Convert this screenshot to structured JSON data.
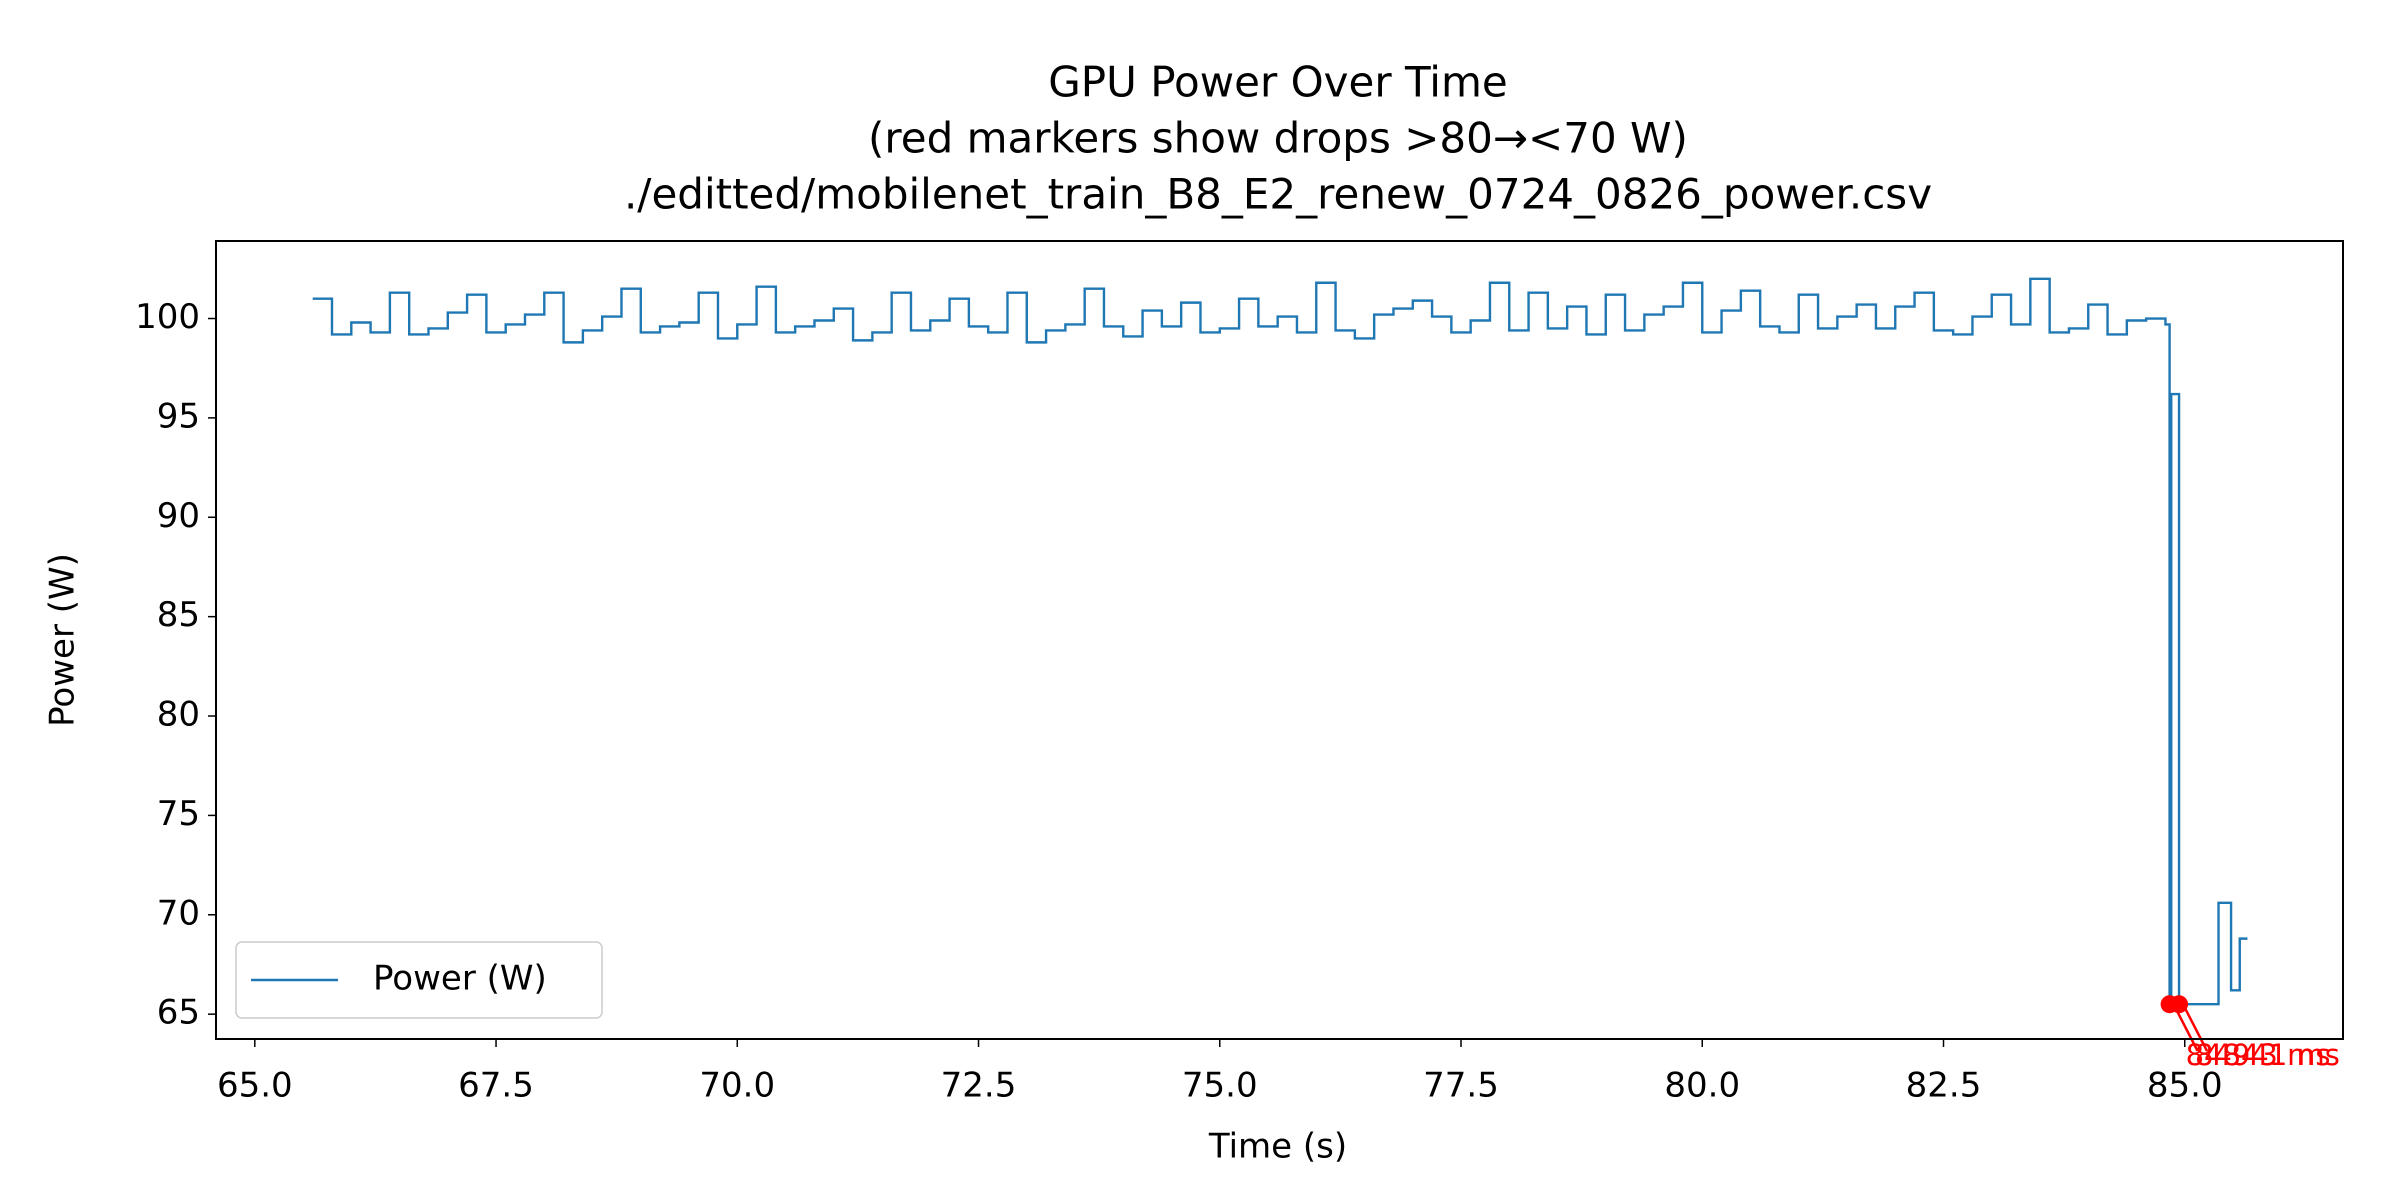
{
  "chart_data": {
    "type": "line",
    "title": [
      "GPU Power Over Time",
      "(red markers show drops >80→<70 W)",
      "./editted/mobilenet_train_B8_E2_renew_0724_0826_power.csv"
    ],
    "xlabel": "Time (s)",
    "ylabel": "Power (W)",
    "step": "post",
    "legend": "lower left",
    "xlim": [
      64.598,
      86.64
    ],
    "ylim": [
      63.75,
      103.9
    ],
    "xticks": [
      {
        "value": 65,
        "label": "65.0"
      },
      {
        "value": 67.5,
        "label": "67.5"
      },
      {
        "value": 70,
        "label": "70.0"
      },
      {
        "value": 72.5,
        "label": "72.5"
      },
      {
        "value": 75,
        "label": "75.0"
      },
      {
        "value": 77.5,
        "label": "77.5"
      },
      {
        "value": 80,
        "label": "80.0"
      },
      {
        "value": 82.5,
        "label": "82.5"
      },
      {
        "value": 85,
        "label": "85.0"
      }
    ],
    "yticks": [
      65,
      70,
      75,
      80,
      85,
      90,
      95,
      100
    ],
    "series": [
      {
        "name": "Power (W)",
        "color": "#1f77b4",
        "x": [
          65.6,
          65.8,
          66.0,
          66.2,
          66.4,
          66.6,
          66.8,
          67.0,
          67.2,
          67.4,
          67.6,
          67.8,
          68.0,
          68.2,
          68.4,
          68.6,
          68.8,
          69.0,
          69.2,
          69.4,
          69.6,
          69.8,
          70.0,
          70.2,
          70.4,
          70.6,
          70.8,
          71.0,
          71.2,
          71.4,
          71.6,
          71.8,
          72.0,
          72.2,
          72.4,
          72.6,
          72.8,
          73.0,
          73.2,
          73.4,
          73.6,
          73.8,
          74.0,
          74.2,
          74.4,
          74.6,
          74.8,
          75.0,
          75.2,
          75.4,
          75.6,
          75.8,
          76.0,
          76.2,
          76.4,
          76.6,
          76.8,
          77.0,
          77.2,
          77.4,
          77.6,
          77.8,
          78.0,
          78.2,
          78.4,
          78.6,
          78.8,
          79.0,
          79.2,
          79.4,
          79.6,
          79.8,
          80.0,
          80.2,
          80.4,
          80.6,
          80.8,
          81.0,
          81.2,
          81.4,
          81.6,
          81.8,
          82.0,
          82.2,
          82.4,
          82.6,
          82.8,
          83.0,
          83.2,
          83.4,
          83.6,
          83.8,
          84.0,
          84.2,
          84.4,
          84.6,
          84.8,
          84.843,
          84.86,
          84.941,
          85.35,
          85.48,
          85.57,
          85.65
        ],
        "values": [
          101.0,
          99.2,
          99.8,
          99.3,
          101.3,
          99.2,
          99.5,
          100.3,
          101.2,
          99.3,
          99.7,
          100.2,
          101.3,
          98.8,
          99.4,
          100.1,
          101.5,
          99.3,
          99.6,
          99.8,
          101.3,
          99.0,
          99.7,
          101.6,
          99.3,
          99.6,
          99.9,
          100.5,
          98.9,
          99.3,
          101.3,
          99.4,
          99.9,
          101.0,
          99.6,
          99.3,
          101.3,
          98.8,
          99.4,
          99.7,
          101.5,
          99.6,
          99.1,
          100.4,
          99.6,
          100.8,
          99.3,
          99.5,
          101.0,
          99.6,
          100.1,
          99.3,
          101.8,
          99.4,
          99.0,
          100.2,
          100.5,
          100.9,
          100.1,
          99.3,
          99.9,
          101.8,
          99.4,
          101.3,
          99.5,
          100.6,
          99.2,
          101.2,
          99.4,
          100.2,
          100.6,
          101.8,
          99.3,
          100.4,
          101.4,
          99.6,
          99.3,
          101.2,
          99.5,
          100.1,
          100.7,
          99.5,
          100.6,
          101.3,
          99.4,
          99.2,
          100.1,
          101.2,
          99.7,
          102.0,
          99.3,
          99.5,
          100.7,
          99.2,
          99.9,
          100.0,
          99.7,
          65.5,
          96.2,
          65.5,
          70.6,
          66.2,
          68.8,
          68.8
        ]
      }
    ],
    "markers": {
      "color": "red",
      "x": [
        84.843,
        84.941
      ],
      "values": [
        65.5,
        65.5
      ],
      "labels": [
        "84843 ms",
        "84941 ms"
      ]
    }
  }
}
